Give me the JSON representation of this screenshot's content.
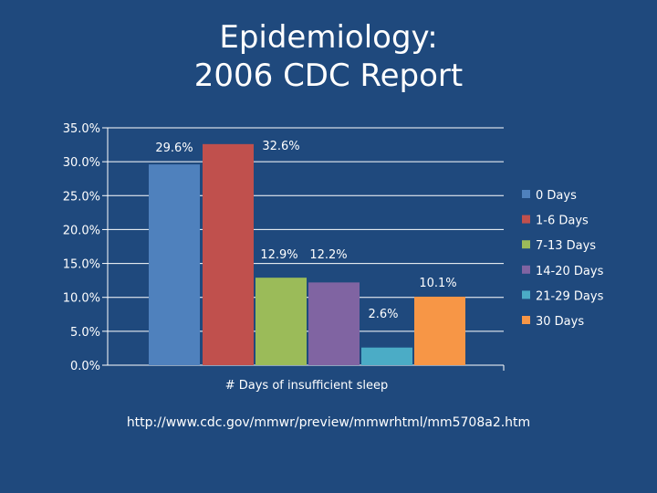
{
  "title_line1": "Epidemiology:",
  "title_line2": "2006 CDC Report",
  "source_url": "http://www.cdc.gov/mmwr/preview/mmwrhtml/mm5708a2.htm",
  "chart_data": {
    "type": "bar",
    "xlabel": "# Days of insufficient sleep",
    "ylabel": "",
    "ylim": [
      0,
      35
    ],
    "yticks": [
      "0.0%",
      "5.0%",
      "10.0%",
      "15.0%",
      "20.0%",
      "25.0%",
      "30.0%",
      "35.0%"
    ],
    "grid": true,
    "legend_position": "right",
    "series": [
      {
        "name": "0 Days",
        "value": 29.6,
        "label": "29.6%",
        "color": "#4f81bd"
      },
      {
        "name": "1-6 Days",
        "value": 32.6,
        "label": "32.6%",
        "color": "#c0504d"
      },
      {
        "name": "7-13 Days",
        "value": 12.9,
        "label": "12.9%",
        "color": "#9bbb59"
      },
      {
        "name": "14-20 Days",
        "value": 12.2,
        "label": "12.2%",
        "color": "#8064a2"
      },
      {
        "name": "21-29 Days",
        "value": 2.6,
        "label": "2.6%",
        "color": "#4bacc6"
      },
      {
        "name": "30 Days",
        "value": 10.1,
        "label": "10.1%",
        "color": "#f79646"
      }
    ]
  }
}
